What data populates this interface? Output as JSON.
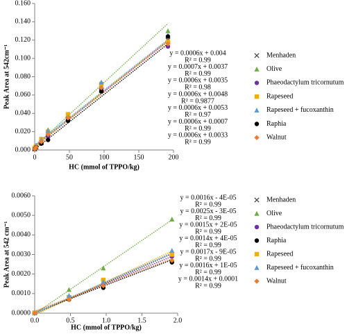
{
  "chart_data": [
    {
      "type": "scatter",
      "x_label": "HC (mmol of TPPO/kg)",
      "y_label": "Peak Area at 542cm⁻¹",
      "x": [
        0,
        1.92,
        9.6,
        19.2,
        48,
        96,
        192
      ],
      "xlim": [
        0,
        200
      ],
      "xticks": [
        0,
        50,
        100,
        150,
        200
      ],
      "ylim": [
        0,
        0.16
      ],
      "yticks": [
        {
          "value": 0,
          "label": "0.000"
        },
        {
          "value": 0.02,
          "label": "0.020"
        },
        {
          "value": 0.04,
          "label": "0.040"
        },
        {
          "value": 0.06,
          "label": "0.060"
        },
        {
          "value": 0.08,
          "label": "0.080"
        },
        {
          "value": 0.1,
          "label": "0.100"
        },
        {
          "value": 0.12,
          "label": "0.120"
        },
        {
          "value": 0.14,
          "label": "0.140"
        },
        {
          "value": 0.16,
          "label": "0.160"
        }
      ],
      "series": [
        {
          "name": "Menhaden",
          "color": "#404040",
          "marker": "x",
          "values": [
            0.001,
            0.003,
            0.008,
            0.018,
            0.034,
            0.065,
            0.12
          ],
          "trendline": {
            "slope": 0.0006,
            "intercept": 0.004,
            "label": "y = 0.0006x + 0.004",
            "r2_label": "R² = 0.99"
          }
        },
        {
          "name": "Olive",
          "color": "#70ad47",
          "marker": "triangle",
          "values": [
            0.002,
            0.004,
            0.01,
            0.022,
            0.037,
            0.07,
            0.13
          ],
          "trendline": {
            "slope": 0.0007,
            "intercept": 0.0037,
            "label": "y = 0.0007x + 0.0037",
            "r2_label": "R² = 0.99"
          }
        },
        {
          "name": "Phaeodactylum tricornutum",
          "color": "#7030a0",
          "marker": "circle",
          "values": [
            0.001,
            0.003,
            0.008,
            0.015,
            0.033,
            0.066,
            0.113
          ],
          "trendline": {
            "slope": 0.0006,
            "intercept": 0.0035,
            "label": "y = 0.0006x + 0.0035",
            "r2_label": "R² = 0.98"
          }
        },
        {
          "name": "Rapeseed",
          "color": "#f0b000",
          "marker": "square",
          "values": [
            0.002,
            0.004,
            0.012,
            0.02,
            0.039,
            0.072,
            0.118
          ],
          "trendline": {
            "slope": 0.0006,
            "intercept": 0.0048,
            "label": "y = 0.0006x + 0.0048",
            "r2_label": "R² = 0.9877"
          }
        },
        {
          "name": "Rapeseed + fucoxanthin",
          "color": "#5b9bd5",
          "marker": "triangle",
          "values": [
            0.002,
            0.005,
            0.011,
            0.021,
            0.036,
            0.074,
            0.125
          ],
          "trendline": {
            "slope": 0.0006,
            "intercept": 0.0053,
            "label": "y = 0.0006x + 0.0053",
            "r2_label": "R² = 0.97"
          }
        },
        {
          "name": "Raphia",
          "color": "#000000",
          "marker": "circle",
          "values": [
            0.001,
            0.003,
            0.007,
            0.011,
            0.032,
            0.064,
            0.124
          ],
          "trendline": {
            "slope": 0.0006,
            "intercept": 0.0007,
            "label": "y = 0.0006x + 0.0007",
            "r2_label": "R² = 0.99"
          }
        },
        {
          "name": "Walnut",
          "color": "#ed7d31",
          "marker": "diamond",
          "values": [
            0.001,
            0.003,
            0.009,
            0.017,
            0.035,
            0.068,
            0.116
          ],
          "trendline": {
            "slope": 0.0006,
            "intercept": 0.0033,
            "label": "y = 0.0006x + 0.0033",
            "r2_label": "R² = 0.99"
          }
        }
      ]
    },
    {
      "type": "scatter",
      "x_label": "HC (mmol of TPPO/kg)",
      "y_label": "Peak Area at 542 cm⁻¹",
      "x": [
        0,
        0.48,
        0.96,
        1.92
      ],
      "xlim": [
        0,
        2
      ],
      "xticks": [
        {
          "value": 0,
          "label": "0.0"
        },
        {
          "value": 0.5,
          "label": "0.5"
        },
        {
          "value": 1,
          "label": "1.0"
        },
        {
          "value": 1.5,
          "label": "1.5"
        },
        {
          "value": 2,
          "label": "2.0"
        }
      ],
      "ylim": [
        0,
        0.006
      ],
      "yticks": [
        {
          "value": 0,
          "label": "0.0000"
        },
        {
          "value": 0.001,
          "label": "0.0010"
        },
        {
          "value": 0.002,
          "label": "0.0020"
        },
        {
          "value": 0.003,
          "label": "0.0030"
        },
        {
          "value": 0.004,
          "label": "0.0040"
        },
        {
          "value": 0.005,
          "label": "0.0050"
        },
        {
          "value": 0.006,
          "label": "0.0060"
        }
      ],
      "series": [
        {
          "name": "Menhaden",
          "color": "#404040",
          "marker": "x",
          "values": [
            1e-05,
            0.0008,
            0.0016,
            0.003
          ],
          "trendline": {
            "slope": 0.0016,
            "intercept": -4e-05,
            "label": "y = 0.0016x - 4E-05",
            "r2_label": "R² = 0.99"
          }
        },
        {
          "name": "Olive",
          "color": "#70ad47",
          "marker": "triangle",
          "values": [
            2e-05,
            0.0012,
            0.0023,
            0.0048
          ],
          "trendline": {
            "slope": 0.0025,
            "intercept": -3e-05,
            "label": "y = 0.0025x - 3E-05",
            "r2_label": "R² = 0.99"
          }
        },
        {
          "name": "Phaeodactylum tricornutum",
          "color": "#7030a0",
          "marker": "circle",
          "values": [
            3e-05,
            0.0008,
            0.0015,
            0.0029
          ],
          "trendline": {
            "slope": 0.0015,
            "intercept": 2e-05,
            "label": "y = 0.0015x + 2E-05",
            "r2_label": "R² = 0.99"
          }
        },
        {
          "name": "Raphia",
          "color": "#000000",
          "marker": "circle",
          "values": [
            1e-05,
            0.0007,
            0.0013,
            0.0026
          ],
          "trendline": {
            "slope": 0.0014,
            "intercept": 4e-05,
            "label": "y = 0.0014x + 4E-05",
            "r2_label": "R² = 0.99"
          }
        },
        {
          "name": "Rapeseed",
          "color": "#f0b000",
          "marker": "square",
          "values": [
            2e-05,
            0.0008,
            0.0017,
            0.003
          ],
          "trendline": {
            "slope": 0.0017,
            "intercept": -9e-05,
            "label": "y = 0.0017x - 9E-05",
            "r2_label": "R² = 0.99"
          }
        },
        {
          "name": "Rapeseed + fucoxanthin",
          "color": "#5b9bd5",
          "marker": "triangle",
          "values": [
            2e-05,
            0.0009,
            0.0016,
            0.0032
          ],
          "trendline": {
            "slope": 0.0016,
            "intercept": 1e-05,
            "label": "y = 0.0016x + 1E-05",
            "r2_label": "R² = 0.99"
          }
        },
        {
          "name": "Walnut",
          "color": "#ed7d31",
          "marker": "diamond",
          "values": [
            1e-05,
            0.0007,
            0.0014,
            0.0027
          ],
          "trendline": {
            "slope": 0.0014,
            "intercept": 0.0001,
            "label": "y = 0.0014x + 0.0001",
            "r2_label": "R² = 0.99"
          }
        }
      ]
    }
  ]
}
